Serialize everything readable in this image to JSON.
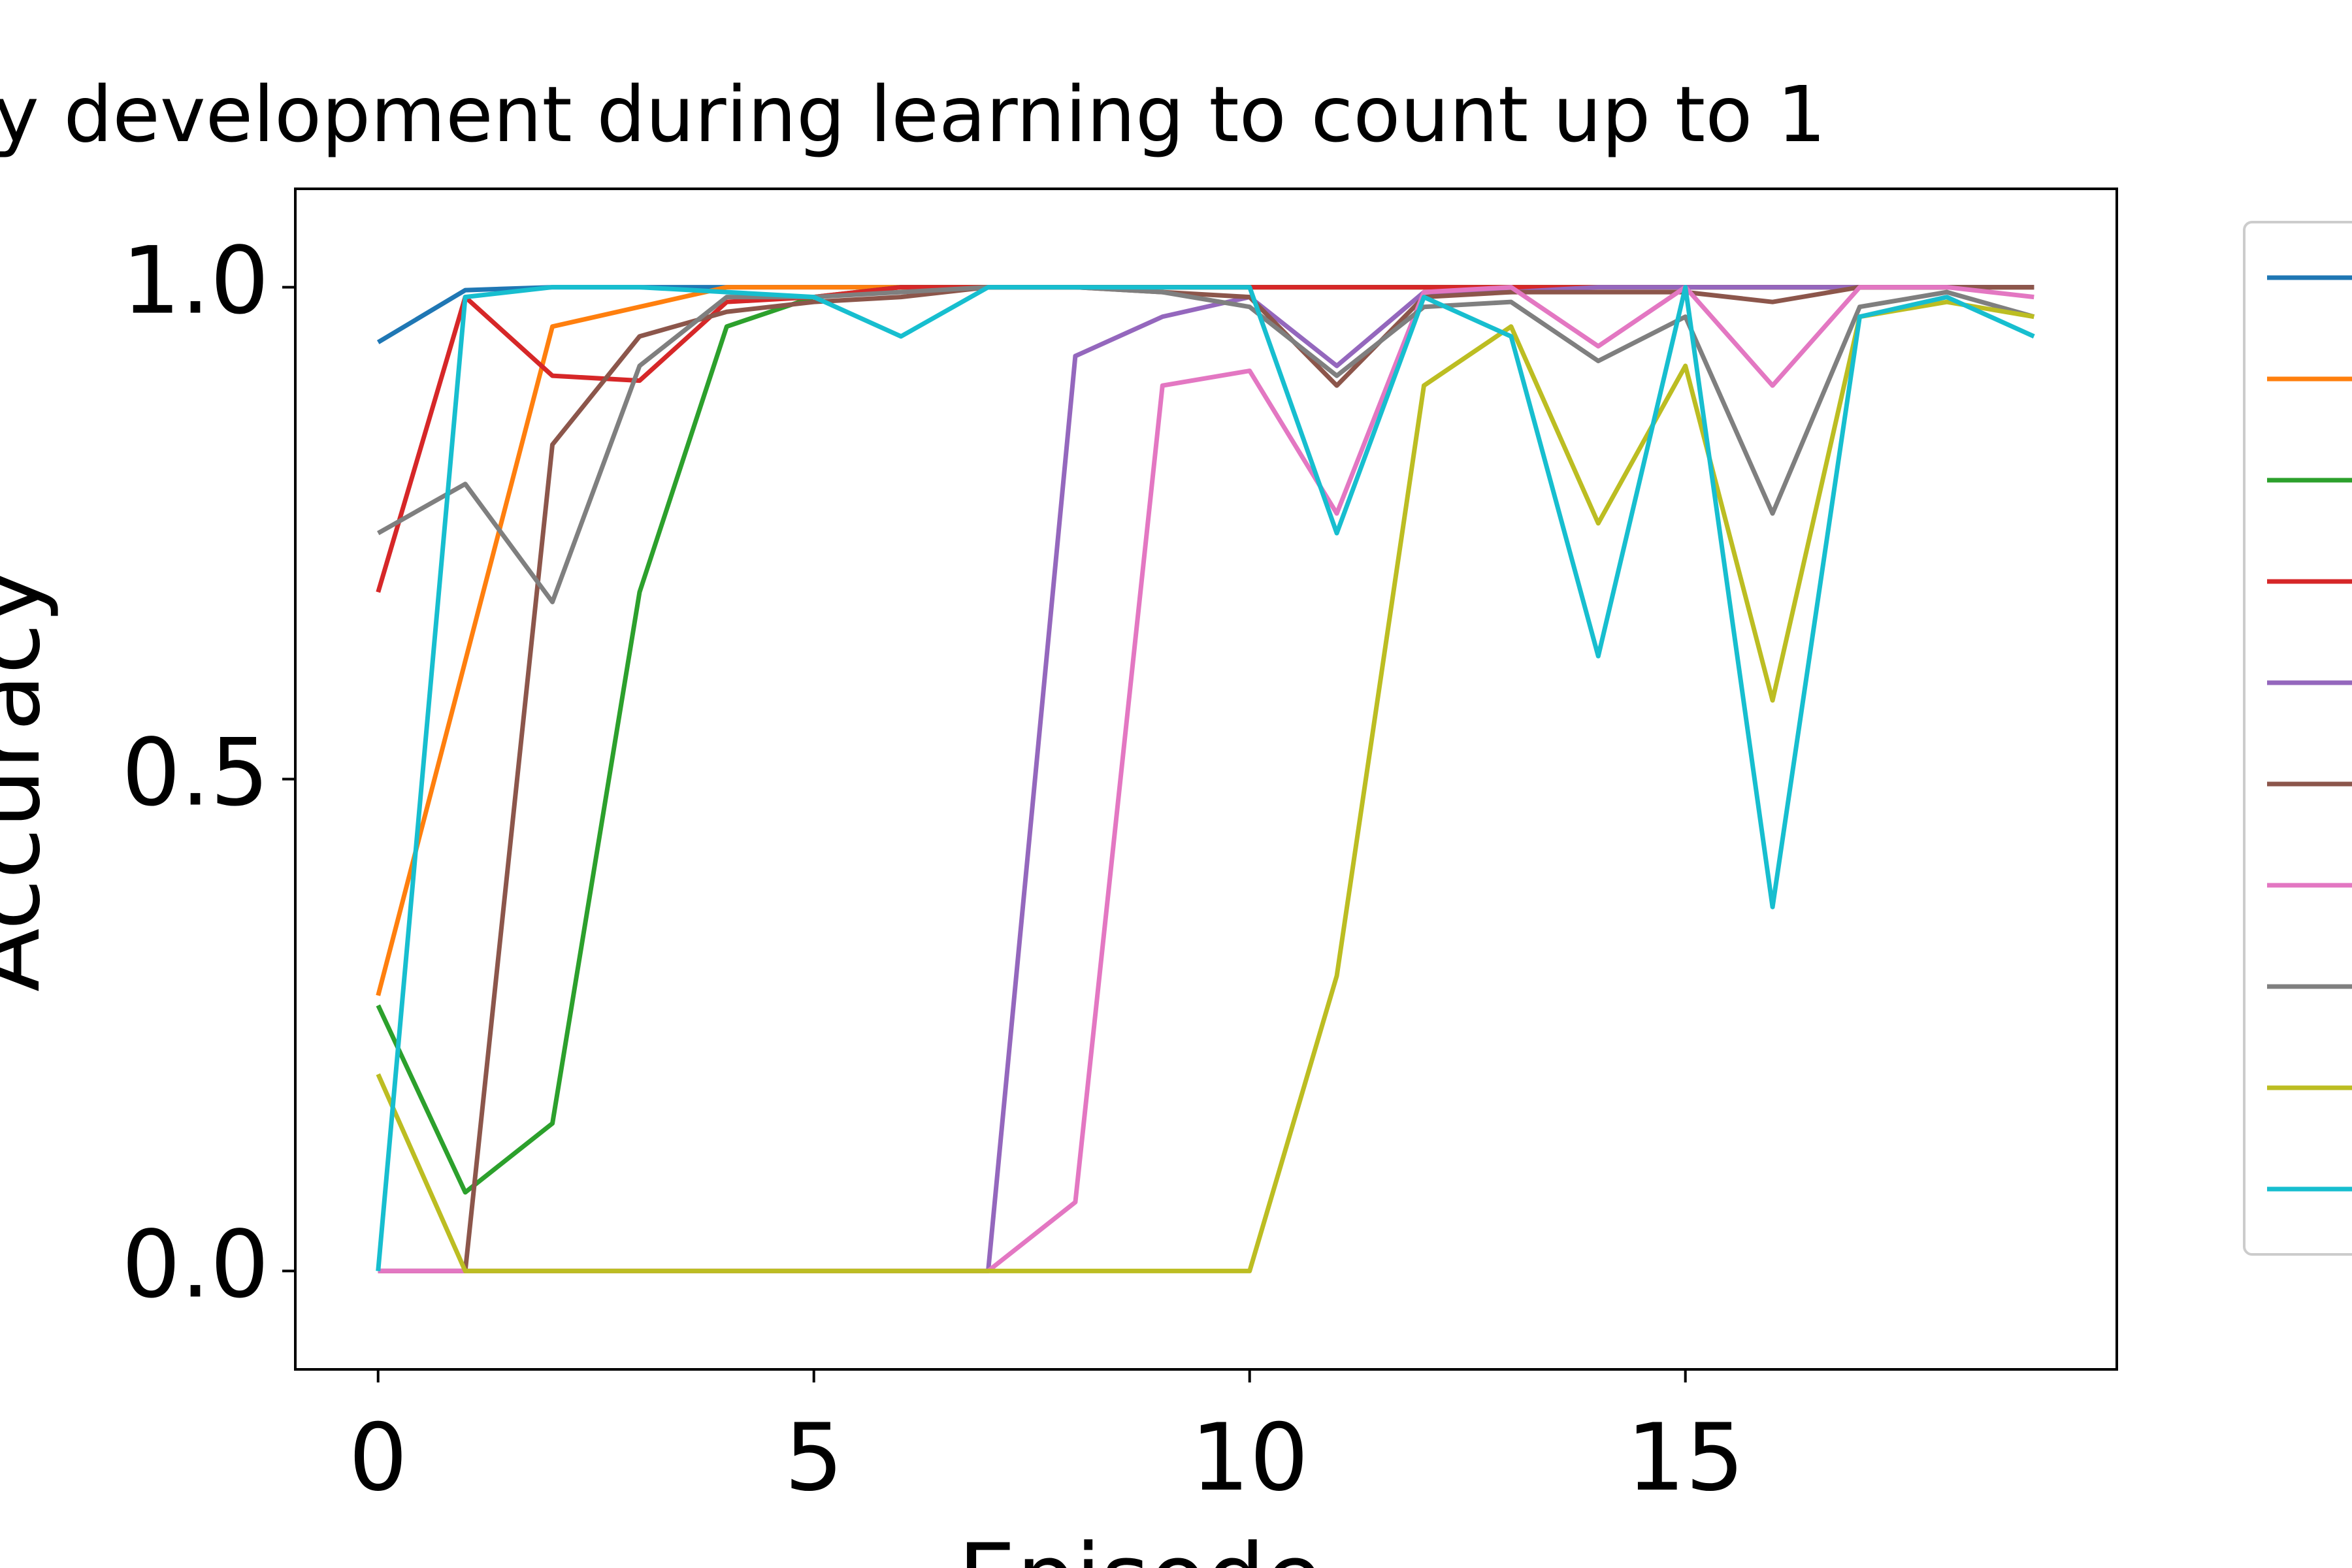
{
  "chart_data": {
    "type": "line",
    "title": "y development during learning to count up to 1",
    "xlabel": "Episode",
    "ylabel": "Accuracy",
    "x": [
      0,
      1,
      2,
      3,
      4,
      5,
      6,
      7,
      8,
      9,
      10,
      11,
      12,
      13,
      14,
      15,
      16,
      17,
      18,
      19
    ],
    "series": [
      {
        "color": "#1f77b4",
        "values": [
          0.944,
          0.997,
          1,
          1,
          1,
          1,
          1,
          1,
          1,
          1,
          1,
          1,
          1,
          1,
          1,
          1,
          1,
          1,
          1,
          1
        ]
      },
      {
        "color": "#ff7f0e",
        "values": [
          0.28,
          0.62,
          0.96,
          0.98,
          1,
          1,
          1,
          1,
          1,
          1,
          1,
          1,
          1,
          1,
          1,
          1,
          1,
          1,
          1,
          1
        ]
      },
      {
        "color": "#2ca02c",
        "values": [
          0.27,
          0.08,
          0.15,
          0.69,
          0.96,
          0.99,
          1,
          1,
          1,
          1,
          1,
          1,
          1,
          1,
          1,
          1,
          1,
          1,
          1,
          1
        ]
      },
      {
        "color": "#d62728",
        "values": [
          0.69,
          0.99,
          0.91,
          0.905,
          0.985,
          0.99,
          1,
          1,
          1,
          1,
          1,
          1,
          1,
          1,
          1,
          1,
          1,
          1,
          1,
          1
        ]
      },
      {
        "color": "#9467bd",
        "values": [
          0,
          0,
          0,
          0,
          0,
          0,
          0,
          0,
          0.93,
          0.97,
          0.99,
          0.92,
          0.995,
          0.995,
          1,
          1,
          1,
          1,
          1,
          1
        ]
      },
      {
        "color": "#8c564b",
        "values": [
          0,
          0,
          0.84,
          0.95,
          0.975,
          0.985,
          0.99,
          1,
          1,
          0.995,
          0.99,
          0.9,
          0.99,
          0.995,
          0.995,
          0.995,
          0.985,
          1,
          1,
          1
        ]
      },
      {
        "color": "#e377c2",
        "values": [
          0,
          0,
          0,
          0,
          0,
          0,
          0,
          0,
          0.07,
          0.9,
          0.915,
          0.77,
          0.995,
          1,
          0.94,
          1,
          0.9,
          1,
          1,
          0.99
        ]
      },
      {
        "color": "#7f7f7f",
        "values": [
          0.75,
          0.8,
          0.68,
          0.92,
          0.99,
          0.99,
          0.995,
          1,
          1,
          0.995,
          0.98,
          0.91,
          0.98,
          0.985,
          0.925,
          0.97,
          0.77,
          0.98,
          0.995,
          0.97
        ]
      },
      {
        "color": "#bcbd22",
        "values": [
          0.2,
          0,
          0,
          0,
          0,
          0,
          0,
          0,
          0,
          0,
          0,
          0.3,
          0.9,
          0.96,
          0.76,
          0.92,
          0.58,
          0.97,
          0.985,
          0.97
        ]
      },
      {
        "color": "#17becf",
        "values": [
          0,
          0.99,
          1,
          1,
          0.995,
          0.99,
          0.95,
          1,
          1,
          1,
          1,
          0.75,
          0.99,
          0.95,
          0.625,
          1,
          0.37,
          0.97,
          0.99,
          0.95
        ]
      }
    ],
    "xlim": [
      -0.95,
      19.95
    ],
    "xticks": [
      0,
      5,
      10,
      15
    ],
    "ylim": [
      -0.1,
      1.1
    ],
    "yticks": [
      {
        "value": 0,
        "label": "0.0"
      },
      {
        "value": 0.5,
        "label": "0.5"
      },
      {
        "value": 1,
        "label": "1.0"
      }
    ],
    "legend": "right"
  }
}
